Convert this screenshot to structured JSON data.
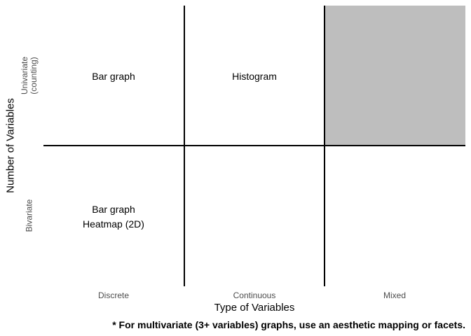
{
  "grid": {
    "columns": [
      "Discrete",
      "Continuous",
      "Mixed"
    ],
    "rows": [
      "Univariate\n(counting)",
      "Bivariate"
    ],
    "shaded_cell": "Univariate / Mixed",
    "shade_color": "#bebebe"
  },
  "cells": {
    "univariate_discrete": [
      "Bar graph"
    ],
    "univariate_continuous": [
      "Histogram"
    ],
    "bivariate_discrete": [
      "Bar graph",
      "Heatmap (2D)"
    ]
  },
  "axes": {
    "x_title": "Type of Variables",
    "y_title": "Number of Variables"
  },
  "footnote": "* For multivariate (3+ variables) graphs, use an aesthetic mapping or facets."
}
